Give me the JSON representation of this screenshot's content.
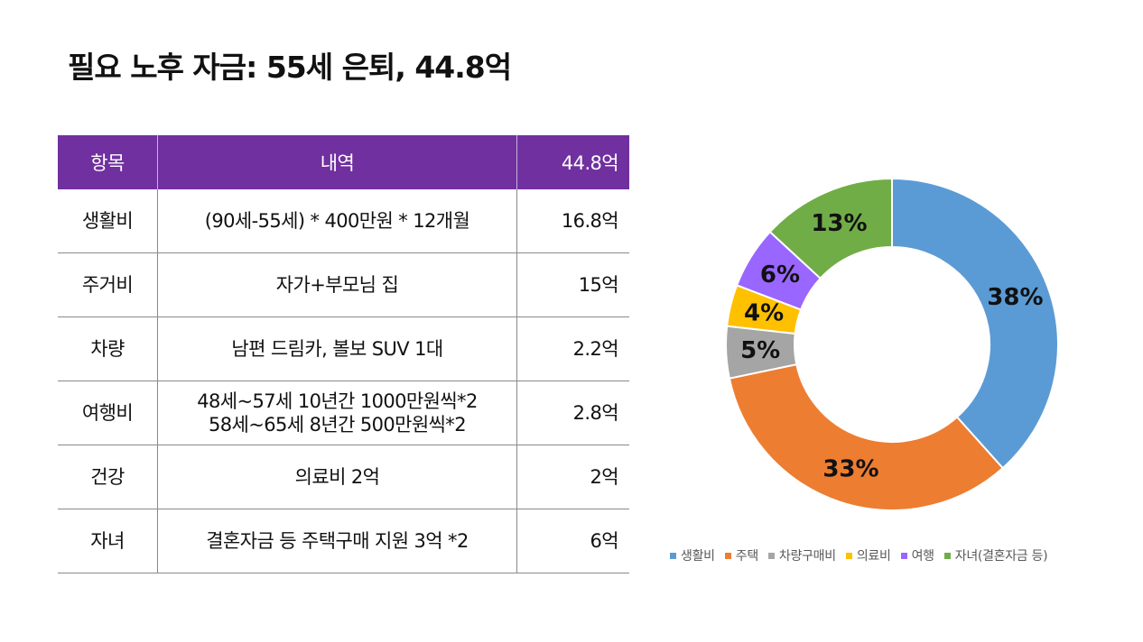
{
  "title": "필요 노후 자금: 55세 은퇴, 44.8억",
  "table": {
    "headers": [
      "항목",
      "내역",
      "44.8억"
    ],
    "rows": [
      {
        "item": "생활비",
        "detail": [
          "(90세-55세) * 400만원 * 12개월"
        ],
        "amount": "16.8억"
      },
      {
        "item": "주거비",
        "detail": [
          "자가+부모님 집"
        ],
        "amount": "15억"
      },
      {
        "item": "차량",
        "detail": [
          "남편 드림카, 볼보 SUV 1대"
        ],
        "amount": "2.2억"
      },
      {
        "item": "여행비",
        "detail": [
          "48세~57세 10년간 1000만원씩*2",
          "58세~65세 8년간 500만원씩*2"
        ],
        "amount": "2.8억"
      },
      {
        "item": "건강",
        "detail": [
          "의료비 2억"
        ],
        "amount": "2억"
      },
      {
        "item": "자녀",
        "detail": [
          "결혼자금 등 주택구매 지원 3억 *2"
        ],
        "amount": "6억"
      }
    ]
  },
  "chart_data": {
    "type": "pie",
    "variant": "donut",
    "categories": [
      "생활비",
      "주택",
      "차량구매비",
      "의료비",
      "여행",
      "자녀(결혼자금 등)"
    ],
    "values": [
      38,
      33,
      5,
      4,
      6,
      13
    ],
    "labels": [
      "38%",
      "33%",
      "5%",
      "4%",
      "6%",
      "13%"
    ],
    "colors": [
      "#5b9bd5",
      "#ed7d31",
      "#a5a5a5",
      "#ffc000",
      "#9966ff",
      "#70ad47"
    ],
    "legend": "bottom"
  }
}
